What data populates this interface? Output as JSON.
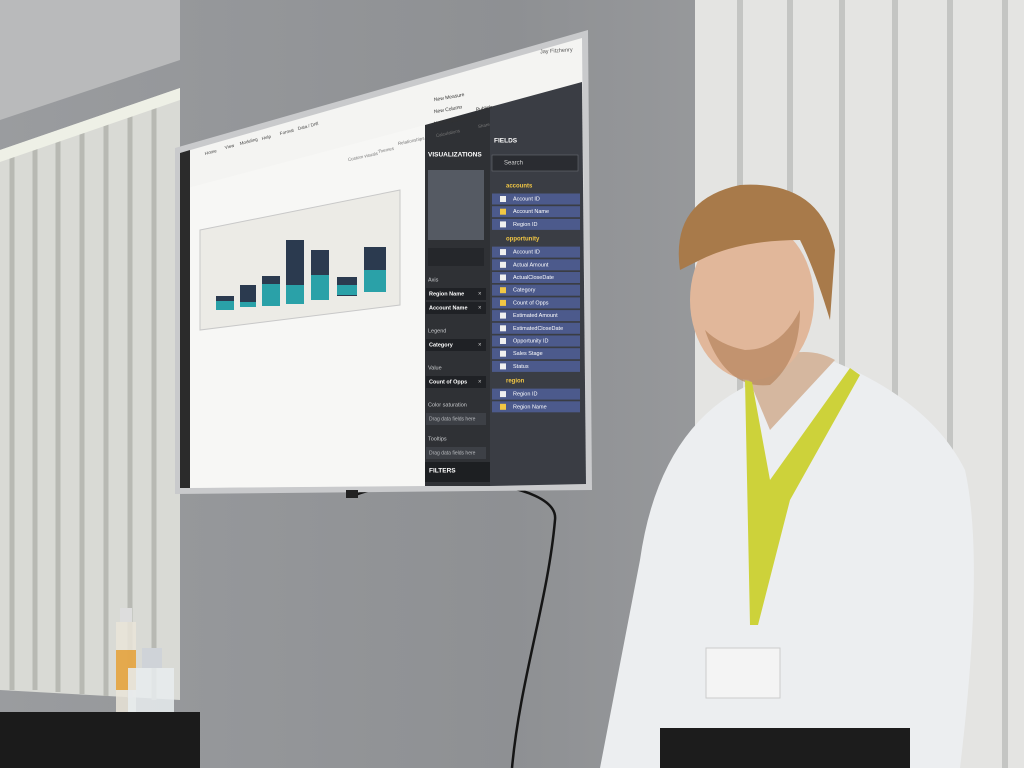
{
  "screen": {
    "user_name": "Jay Fitzhenry",
    "ribbon": {
      "tabs": [
        "Home",
        "View",
        "Modeling",
        "Help",
        "Format",
        "Data / Drill"
      ],
      "buttons": [
        "New Measure",
        "New Column",
        "New Quick Measure",
        "Publish"
      ],
      "groups": [
        "Calculations",
        "Share",
        "Relationships",
        "Themes",
        "Custom visuals"
      ]
    },
    "visualizations": {
      "title": "VISUALIZATIONS",
      "wells": [
        {
          "label": "Axis",
          "fields": [
            "Region Name",
            "Account Name"
          ]
        },
        {
          "label": "Legend",
          "fields": [
            "Category"
          ]
        },
        {
          "label": "Value",
          "fields": [
            "Count of Opps"
          ]
        },
        {
          "label": "Color saturation",
          "placeholder": "Drag data fields here"
        },
        {
          "label": "Tooltips",
          "placeholder": "Drag data fields here"
        }
      ]
    },
    "filters_title": "FILTERS",
    "fields": {
      "title": "FIELDS",
      "search_placeholder": "Search",
      "tables": [
        {
          "name": "accounts",
          "fields": [
            {
              "name": "Account ID",
              "checked": false
            },
            {
              "name": "Account Name",
              "checked": true
            },
            {
              "name": "Region ID",
              "checked": false
            }
          ]
        },
        {
          "name": "opportunity",
          "fields": [
            {
              "name": "Account ID",
              "checked": false
            },
            {
              "name": "Actual Amount",
              "checked": false
            },
            {
              "name": "ActualCloseDate",
              "checked": false
            },
            {
              "name": "Category",
              "checked": true
            },
            {
              "name": "Count of Opps",
              "checked": true
            },
            {
              "name": "Estimated Amount",
              "checked": false
            },
            {
              "name": "EstimatedCloseDate",
              "checked": false
            },
            {
              "name": "Opportunity ID",
              "checked": false
            },
            {
              "name": "Sales Stage",
              "checked": false
            },
            {
              "name": "Status",
              "checked": false
            }
          ]
        },
        {
          "name": "region",
          "fields": [
            {
              "name": "Region ID",
              "checked": false
            },
            {
              "name": "Region Name",
              "checked": true
            }
          ]
        }
      ]
    }
  }
}
